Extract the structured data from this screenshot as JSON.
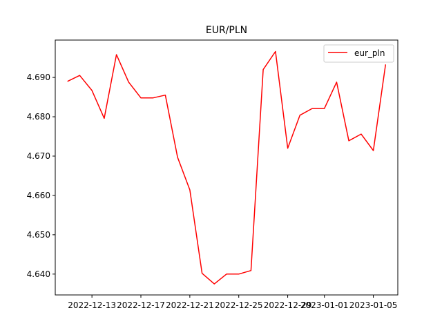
{
  "chart_data": {
    "type": "line",
    "title": "EUR/PLN",
    "xlabel": "",
    "ylabel": "",
    "x": [
      "2022-12-11",
      "2022-12-12",
      "2022-12-13",
      "2022-12-14",
      "2022-12-15",
      "2022-12-16",
      "2022-12-17",
      "2022-12-18",
      "2022-12-19",
      "2022-12-20",
      "2022-12-21",
      "2022-12-22",
      "2022-12-23",
      "2022-12-24",
      "2022-12-25",
      "2022-12-26",
      "2022-12-27",
      "2022-12-28",
      "2022-12-29",
      "2022-12-30",
      "2022-12-31",
      "2023-01-01",
      "2023-01-02",
      "2023-01-03",
      "2023-01-04",
      "2023-01-05",
      "2023-01-06"
    ],
    "series": [
      {
        "name": "eur_pln",
        "color": "#ff0000",
        "values": [
          4.689,
          4.6905,
          4.6867,
          4.6796,
          4.6958,
          4.6888,
          4.6848,
          4.6848,
          4.6855,
          4.6697,
          4.6614,
          4.6402,
          4.6375,
          4.64,
          4.64,
          4.6409,
          4.692,
          4.6966,
          4.672,
          4.6804,
          4.6821,
          4.6821,
          4.6888,
          4.6739,
          4.6756,
          4.6714,
          4.6933
        ]
      }
    ],
    "x_ticks": [
      "2022-12-13",
      "2022-12-17",
      "2022-12-21",
      "2022-12-25",
      "2022-12-29",
      "2023-01-01",
      "2023-01-05"
    ],
    "y_ticks": [
      "4.640",
      "4.650",
      "4.660",
      "4.670",
      "4.680",
      "4.690"
    ],
    "ylim": [
      4.6347,
      4.6995
    ],
    "xlim": [
      "2022-12-10",
      "2023-01-07"
    ],
    "legend": {
      "position": "top-right",
      "labels": [
        "eur_pln"
      ]
    },
    "grid": false
  }
}
